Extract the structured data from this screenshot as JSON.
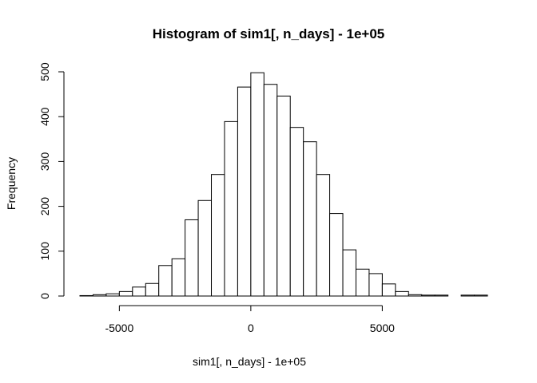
{
  "chart_data": {
    "type": "bar",
    "title": "Histogram of sim1[, n_days] - 1e+05",
    "xlabel": "sim1[, n_days] - 1e+05",
    "ylabel": "Frequency",
    "bin_width": 500,
    "bin_start": -6500,
    "x_ticks": [
      -5000,
      0,
      5000
    ],
    "x_tick_labels": [
      "-5000",
      "0",
      "5000"
    ],
    "y_ticks": [
      0,
      100,
      200,
      300,
      400,
      500
    ],
    "y_tick_labels": [
      "0",
      "100",
      "200",
      "300",
      "400",
      "500"
    ],
    "xlim": [
      -6500,
      9000
    ],
    "ylim": [
      0,
      500
    ],
    "values": [
      1,
      3,
      5,
      10,
      20,
      28,
      68,
      83,
      170,
      213,
      271,
      389,
      466,
      498,
      472,
      446,
      376,
      344,
      271,
      184,
      103,
      60,
      50,
      27,
      10,
      3,
      2,
      2,
      0,
      2,
      2
    ],
    "bar_fill": "#ffffff",
    "bar_stroke": "#000000",
    "grid": false
  }
}
